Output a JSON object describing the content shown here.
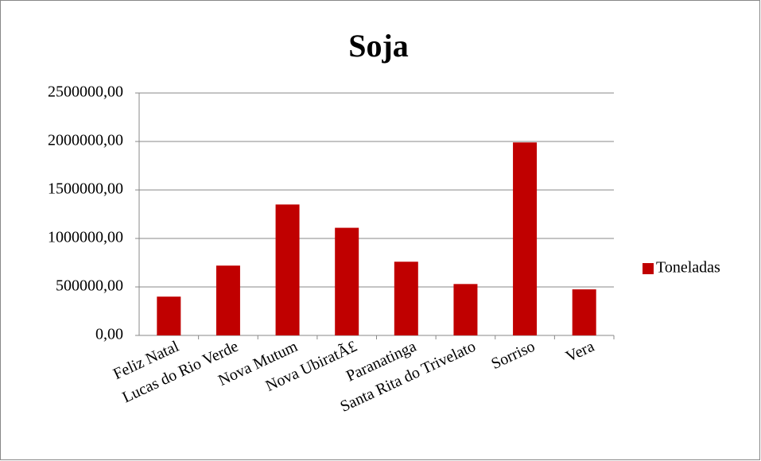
{
  "chart_data": {
    "type": "bar",
    "title": "Soja",
    "categories": [
      "Feliz Natal",
      "Lucas do Rio Verde",
      "Nova Mutum",
      "Nova UbiratÃ£",
      "Paranatinga",
      "Santa Rita do Trivelato",
      "Sorriso",
      "Vera"
    ],
    "series": [
      {
        "name": "Toneladas",
        "color": "#c00000",
        "values": [
          400000,
          720000,
          1350000,
          1110000,
          760000,
          530000,
          1990000,
          475000
        ]
      }
    ],
    "ylim": [
      0,
      2500000
    ],
    "yticks": [
      {
        "value": 0,
        "label": "0,00"
      },
      {
        "value": 500000,
        "label": "500000,00"
      },
      {
        "value": 1000000,
        "label": "1000000,00"
      },
      {
        "value": 1500000,
        "label": "1500000,00"
      },
      {
        "value": 2000000,
        "label": "2000000,00"
      },
      {
        "value": 2500000,
        "label": "2500000,00"
      }
    ],
    "grid": true,
    "legend": "right"
  }
}
